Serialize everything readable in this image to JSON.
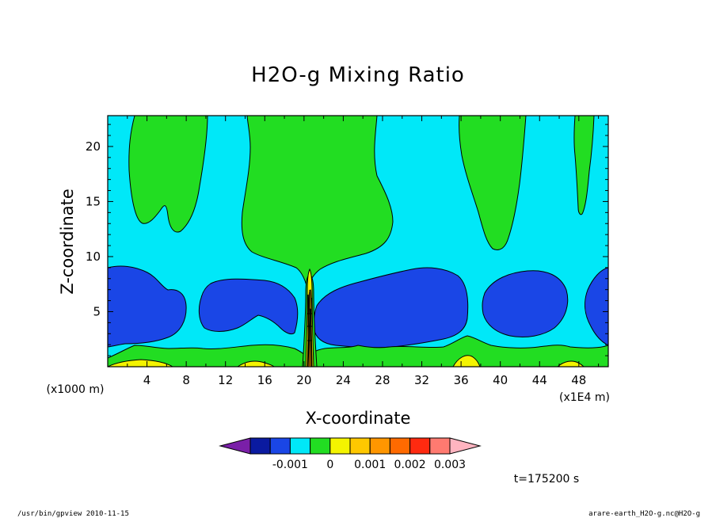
{
  "chart_data": {
    "type": "contour",
    "title": "H2O-g Mixing Ratio",
    "xlabel": "X-coordinate",
    "ylabel": "Z-coordinate",
    "x_unit": "(x1E4 m)",
    "y_unit": "(x1000 m)",
    "x_ticks": [
      4,
      8,
      12,
      16,
      20,
      24,
      28,
      32,
      36,
      40,
      44,
      48
    ],
    "y_ticks": [
      5,
      10,
      15,
      20
    ],
    "xlim": [
      0,
      51
    ],
    "ylim": [
      0,
      22.8
    ],
    "colorbar": {
      "colors": [
        "#7a1fa8",
        "#0a1aa0",
        "#1a46e6",
        "#00e8f8",
        "#22dd22",
        "#f4f400",
        "#ffc800",
        "#ff9600",
        "#ff6a00",
        "#ff2a10",
        "#ff7a70",
        "#ffb4c0"
      ],
      "tick_labels": [
        "-0.001",
        "0",
        "0.001",
        "0.002",
        "0.003"
      ]
    },
    "time_label": "t=175200 s"
  },
  "footer": {
    "left": "/usr/bin/gpview  2010-11-15",
    "right": "arare-earth_H2O-g.nc@H2O-g"
  }
}
